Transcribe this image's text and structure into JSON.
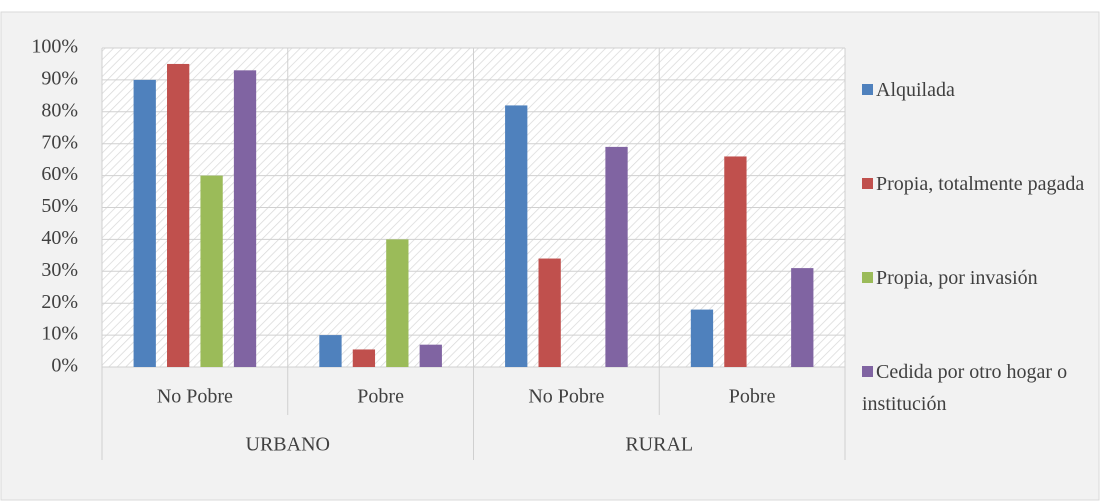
{
  "chart_data": {
    "type": "bar",
    "groups": [
      {
        "name": "URBANO",
        "categories": [
          "No Pobre",
          "Pobre"
        ]
      },
      {
        "name": "RURAL",
        "categories": [
          "No Pobre",
          "Pobre"
        ]
      }
    ],
    "series": [
      {
        "name": "Alquilada",
        "color": "#4f81bd",
        "values": [
          90,
          10,
          82,
          18
        ]
      },
      {
        "name": "Propia, totalmente pagada",
        "color": "#c0504d",
        "values": [
          95,
          5.5,
          34,
          66
        ]
      },
      {
        "name": "Propia, por invasión",
        "color": "#9bbb59",
        "values": [
          60,
          40,
          0,
          0
        ]
      },
      {
        "name": "Cedida por otro hogar o institución",
        "color": "#8064a2",
        "values": [
          93,
          7,
          69,
          31
        ]
      }
    ],
    "ylim": [
      0,
      100
    ],
    "yticks": [
      {
        "value": 0,
        "label": "0%"
      },
      {
        "value": 10,
        "label": "10%"
      },
      {
        "value": 20,
        "label": "20%"
      },
      {
        "value": 30,
        "label": "30%"
      },
      {
        "value": 40,
        "label": "40%"
      },
      {
        "value": 50,
        "label": "50%"
      },
      {
        "value": 60,
        "label": "60%"
      },
      {
        "value": 70,
        "label": "70%"
      },
      {
        "value": 80,
        "label": "80%"
      },
      {
        "value": 90,
        "label": "90%"
      },
      {
        "value": 100,
        "label": "100%"
      }
    ],
    "grid": true,
    "legend": "right"
  }
}
